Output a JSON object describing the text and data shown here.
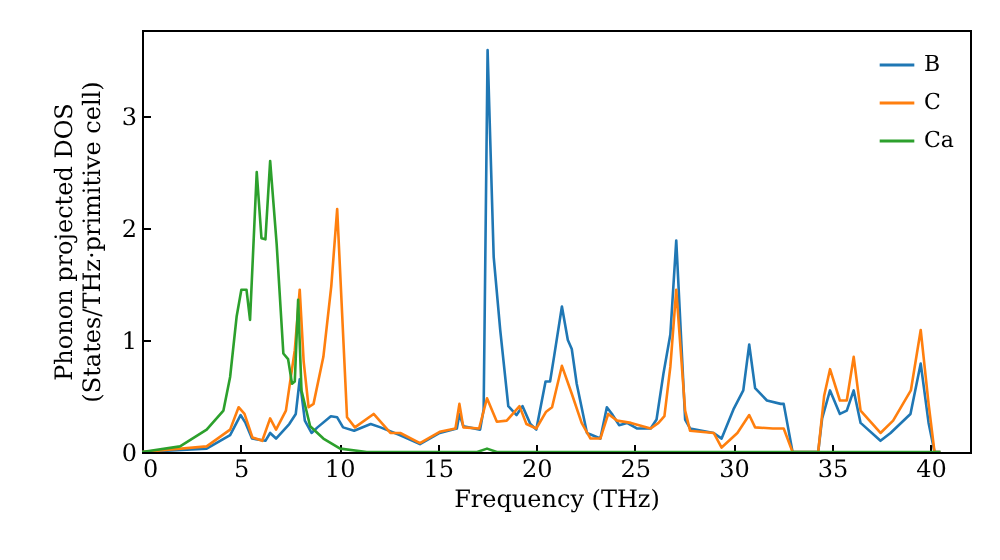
{
  "chart_data": {
    "type": "line",
    "xlabel": "Frequency (THz)",
    "ylabel": "Phonon projected DOS\n(States/THz·primitive cell)",
    "xlim": [
      0,
      42
    ],
    "ylim": [
      0,
      3.77
    ],
    "xticks": [
      0,
      5,
      10,
      15,
      20,
      25,
      30,
      35,
      40
    ],
    "yticks": [
      0,
      1,
      2,
      3
    ],
    "legend": "top right",
    "grid": false,
    "series": [
      {
        "name": "B",
        "color": "#1f77b4",
        "x": [
          0,
          3.28,
          4.47,
          5.0,
          5.25,
          5.58,
          6.26,
          6.5,
          6.8,
          7.47,
          7.8,
          8.0,
          8.26,
          8.6,
          8.9,
          9.58,
          9.9,
          10.2,
          10.76,
          11.6,
          12.1,
          13.1,
          14.1,
          15.1,
          15.97,
          16.1,
          16.3,
          17.15,
          17.33,
          17.53,
          17.84,
          18.17,
          18.58,
          19.0,
          19.3,
          19.7,
          20.0,
          20.47,
          20.7,
          20.9,
          21.3,
          21.6,
          21.8,
          22.05,
          22.57,
          23.25,
          23.58,
          23.84,
          24.2,
          24.6,
          25.1,
          25.8,
          26.1,
          26.45,
          26.8,
          27.1,
          27.55,
          27.8,
          29.0,
          29.4,
          30.0,
          30.5,
          30.8,
          31.1,
          31.7,
          32.4,
          32.55,
          33.0,
          34.3,
          34.5,
          34.9,
          35.4,
          35.75,
          36.1,
          36.45,
          37.46,
          37.97,
          38.98,
          39.5,
          39.9,
          40.2,
          40.5
        ],
        "values": [
          0,
          0.03,
          0.15,
          0.33,
          0.26,
          0.12,
          0.1,
          0.17,
          0.12,
          0.25,
          0.34,
          0.65,
          0.28,
          0.17,
          0.22,
          0.32,
          0.31,
          0.22,
          0.19,
          0.25,
          0.22,
          0.15,
          0.07,
          0.17,
          0.21,
          0.34,
          0.23,
          0.2,
          0.38,
          3.59,
          1.74,
          1.09,
          0.41,
          0.33,
          0.41,
          0.25,
          0.2,
          0.63,
          0.63,
          0.85,
          1.3,
          1.0,
          0.92,
          0.61,
          0.17,
          0.12,
          0.4,
          0.34,
          0.24,
          0.26,
          0.21,
          0.21,
          0.29,
          0.7,
          1.05,
          1.89,
          0.29,
          0.21,
          0.17,
          0.12,
          0.38,
          0.55,
          0.96,
          0.57,
          0.46,
          0.43,
          0.43,
          0,
          0,
          0.3,
          0.55,
          0.34,
          0.37,
          0.55,
          0.26,
          0.1,
          0.17,
          0.34,
          0.79,
          0.26,
          0,
          0
        ]
      },
      {
        "name": "C",
        "color": "#ff7f0e",
        "x": [
          0,
          3.28,
          4.47,
          4.9,
          5.2,
          5.6,
          6.1,
          6.5,
          6.8,
          7.3,
          7.75,
          8.0,
          8.2,
          8.45,
          8.7,
          9.2,
          9.6,
          9.9,
          10.4,
          10.8,
          11.75,
          12.6,
          13.1,
          14.1,
          15.1,
          15.9,
          16.1,
          16.3,
          17.1,
          17.5,
          18.0,
          18.5,
          19.15,
          19.5,
          20.0,
          20.5,
          20.8,
          21.3,
          21.8,
          22.3,
          22.75,
          23.25,
          23.65,
          24.1,
          24.8,
          25.8,
          26.2,
          26.5,
          26.8,
          27.1,
          27.55,
          27.8,
          29.0,
          29.4,
          30.2,
          30.8,
          31.1,
          32.0,
          32.55,
          33.0,
          34.3,
          34.6,
          34.9,
          35.4,
          35.75,
          36.1,
          36.45,
          37.46,
          38.1,
          39.0,
          39.5,
          39.9,
          40.2,
          40.5
        ],
        "values": [
          0,
          0.05,
          0.2,
          0.4,
          0.34,
          0.13,
          0.1,
          0.3,
          0.2,
          0.37,
          0.91,
          1.45,
          0.81,
          0.4,
          0.43,
          0.85,
          1.48,
          2.17,
          0.31,
          0.22,
          0.34,
          0.17,
          0.17,
          0.08,
          0.18,
          0.21,
          0.43,
          0.22,
          0.21,
          0.48,
          0.27,
          0.28,
          0.41,
          0.25,
          0.21,
          0.36,
          0.4,
          0.77,
          0.52,
          0.26,
          0.12,
          0.12,
          0.34,
          0.28,
          0.26,
          0.21,
          0.26,
          0.32,
          0.76,
          1.45,
          0.37,
          0.19,
          0.17,
          0.04,
          0.17,
          0.33,
          0.22,
          0.21,
          0.21,
          0,
          0,
          0.5,
          0.74,
          0.46,
          0.46,
          0.85,
          0.37,
          0.17,
          0.28,
          0.55,
          1.09,
          0.43,
          0,
          0
        ]
      },
      {
        "name": "Ca",
        "color": "#2ca02c",
        "x": [
          0,
          1.93,
          3.28,
          4.13,
          4.47,
          4.8,
          5.04,
          5.3,
          5.48,
          5.82,
          6.06,
          6.26,
          6.5,
          6.83,
          7.17,
          7.41,
          7.61,
          7.75,
          7.92,
          8.09,
          8.53,
          9.2,
          10.05,
          11.4,
          17.0,
          17.5,
          18.0,
          40.5
        ],
        "values": [
          0,
          0.05,
          0.2,
          0.37,
          0.67,
          1.21,
          1.45,
          1.45,
          1.18,
          2.5,
          1.91,
          1.9,
          2.6,
          1.86,
          0.88,
          0.83,
          0.61,
          0.63,
          1.36,
          0.55,
          0.23,
          0.12,
          0.03,
          0,
          0,
          0.03,
          0,
          0
        ]
      }
    ]
  }
}
